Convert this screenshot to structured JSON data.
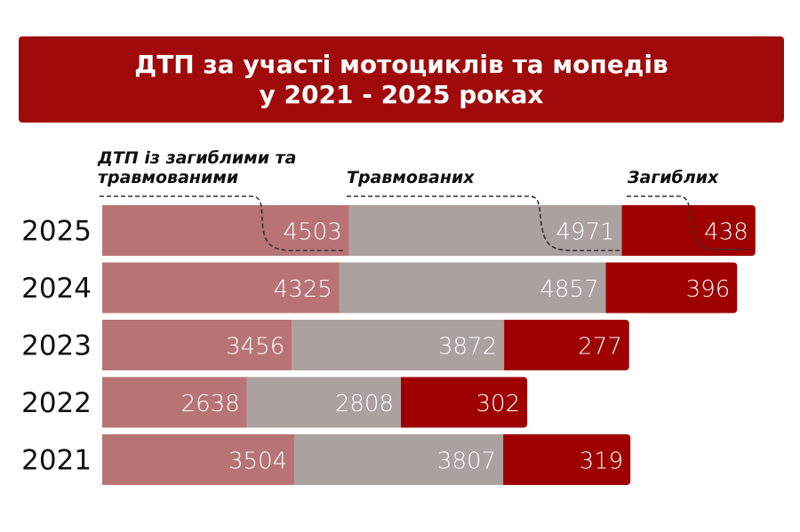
{
  "title": {
    "line1": "ДТП за участі мотоциклів та мопедів",
    "line2": "у 2021 - 2025 роках"
  },
  "chart_data": {
    "type": "bar",
    "orientation": "horizontal",
    "stacked": true,
    "title": "ДТП за участі мотоциклів та мопедів у 2021 - 2025 роках",
    "categories": [
      "2025",
      "2024",
      "2023",
      "2022",
      "2021"
    ],
    "series": [
      {
        "name": "ДТП із загиблими та травмованими",
        "values": [
          4503,
          4325,
          3456,
          2638,
          3504
        ],
        "color": "#b87474"
      },
      {
        "name": "Травмованих",
        "values": [
          4971,
          4857,
          3872,
          2808,
          3807
        ],
        "color": "#aba19f"
      },
      {
        "name": "Загиблих",
        "values": [
          438,
          396,
          277,
          302,
          319
        ],
        "color": "#9e0000"
      }
    ],
    "legend_placement": "top, above first bar",
    "grid": false
  },
  "colors": {
    "title_bg": "#a00a0a"
  }
}
